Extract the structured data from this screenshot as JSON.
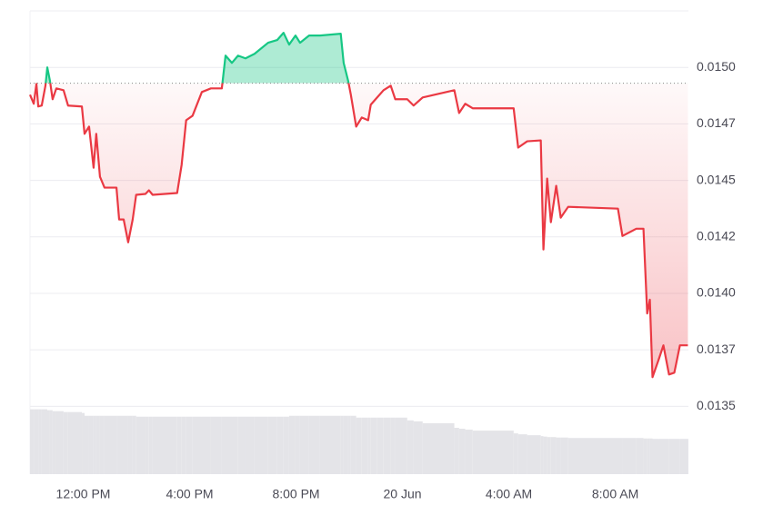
{
  "chart_data": {
    "type": "line",
    "x": [
      10.0,
      10.14,
      10.24,
      10.31,
      10.44,
      10.58,
      10.65,
      10.75,
      10.85,
      10.99,
      11.26,
      11.43,
      11.95,
      12.05,
      12.22,
      12.39,
      12.49,
      12.63,
      12.8,
      13.25,
      13.35,
      13.52,
      13.69,
      13.86,
      13.99,
      14.34,
      14.47,
      14.61,
      15.53,
      15.7,
      15.87,
      16.11,
      16.46,
      16.8,
      17.21,
      17.35,
      17.59,
      17.82,
      18.1,
      18.44,
      18.95,
      19.29,
      19.53,
      19.74,
      19.98,
      20.15,
      20.49,
      20.9,
      21.68,
      21.79,
      21.96,
      22.06,
      22.26,
      22.47,
      22.71,
      22.81,
      23.05,
      23.29,
      23.56,
      23.73,
      24.18,
      24.42,
      24.76,
      25.95,
      26.13,
      26.36,
      26.64,
      28.18,
      28.35,
      28.69,
      29.2,
      29.3,
      29.44,
      29.58,
      29.78,
      29.95,
      30.23,
      32.1,
      32.27,
      32.79,
      33.06,
      33.2,
      33.3,
      33.4,
      33.64,
      33.81,
      34.02,
      34.22,
      34.43,
      34.73
    ],
    "values": [
      0.014879,
      0.014839,
      0.014927,
      0.014827,
      0.014831,
      0.014919,
      0.015,
      0.01494,
      0.014859,
      0.014907,
      0.014899,
      0.014831,
      0.014827,
      0.014706,
      0.014738,
      0.014556,
      0.014706,
      0.014516,
      0.014468,
      0.014468,
      0.014327,
      0.014327,
      0.014226,
      0.014327,
      0.014436,
      0.01444,
      0.014456,
      0.014436,
      0.014444,
      0.014569,
      0.014766,
      0.014786,
      0.014891,
      0.014907,
      0.014907,
      0.015052,
      0.01502,
      0.015052,
      0.01504,
      0.01506,
      0.015109,
      0.015121,
      0.015153,
      0.015101,
      0.015141,
      0.015109,
      0.015141,
      0.015141,
      0.015149,
      0.01502,
      0.01494,
      0.014879,
      0.014738,
      0.014778,
      0.014766,
      0.014835,
      0.014867,
      0.014899,
      0.014919,
      0.014859,
      0.014859,
      0.014831,
      0.014867,
      0.014899,
      0.014798,
      0.014839,
      0.014819,
      0.014819,
      0.014645,
      0.014673,
      0.014677,
      0.014194,
      0.014508,
      0.014315,
      0.014476,
      0.014335,
      0.014383,
      0.014375,
      0.014254,
      0.014286,
      0.014286,
      0.013911,
      0.013972,
      0.013629,
      0.01371,
      0.01377,
      0.013641,
      0.013649,
      0.01377,
      0.01377
    ],
    "baseline": 0.01493,
    "up_color": "#16c784",
    "down_color": "#ea3943",
    "volume": {
      "axis": "y2",
      "color": "#e4e4e8",
      "values": [
        14,
        14,
        14,
        14,
        14,
        14,
        13.8,
        13.8,
        13.6,
        13.6,
        13.4,
        13.4,
        13.2,
        12.6,
        12.6,
        12.6,
        12.6,
        12.6,
        12.6,
        12.6,
        12.6,
        12.6,
        12.6,
        12.6,
        12.4,
        12.4,
        12.4,
        12.4,
        12.4,
        12.4,
        12.4,
        12.4,
        12.4,
        12.4,
        12.4,
        12.4,
        12.4,
        12.4,
        12.4,
        12.4,
        12.4,
        12.4,
        12.4,
        12.6,
        12.6,
        12.6,
        12.6,
        12.6,
        12.6,
        12.6,
        12.6,
        12.6,
        12.2,
        12.2,
        12.2,
        12.2,
        12.2,
        12.2,
        12.2,
        12.2,
        11.6,
        11.4,
        11,
        10,
        9.8,
        9.6,
        9.4,
        8.8,
        8.6,
        8.4,
        8.2,
        8.1,
        8,
        8,
        7.9,
        7.9,
        7.8,
        7.8,
        7.8,
        7.8,
        7.7,
        7.7,
        7.7,
        7.6,
        7.6,
        7.6,
        7.6,
        7.6,
        7.6,
        7.6
      ]
    },
    "xlim": [
      10,
      34.75
    ],
    "xticks": [
      {
        "value": 12,
        "label": "12:00 PM"
      },
      {
        "value": 16,
        "label": "4:00 PM"
      },
      {
        "value": 20,
        "label": "8:00 PM"
      },
      {
        "value": 24,
        "label": "20 Jun"
      },
      {
        "value": 28,
        "label": "4:00 AM"
      },
      {
        "value": 32,
        "label": "8:00 AM"
      }
    ],
    "ylim": [
      0.0132,
      0.01525
    ],
    "yticks": [
      0.0135,
      {
        "value": 0.01375,
        "label": "0.0137"
      },
      {
        "value": 0.014,
        "label": "0.0140"
      },
      {
        "value": 0.01425,
        "label": "0.0142"
      },
      0.0145,
      {
        "value": 0.01475,
        "label": "0.0147"
      },
      {
        "value": 0.015,
        "label": "0.0150"
      }
    ],
    "y2lim": [
      0,
      100
    ],
    "grid": true
  }
}
